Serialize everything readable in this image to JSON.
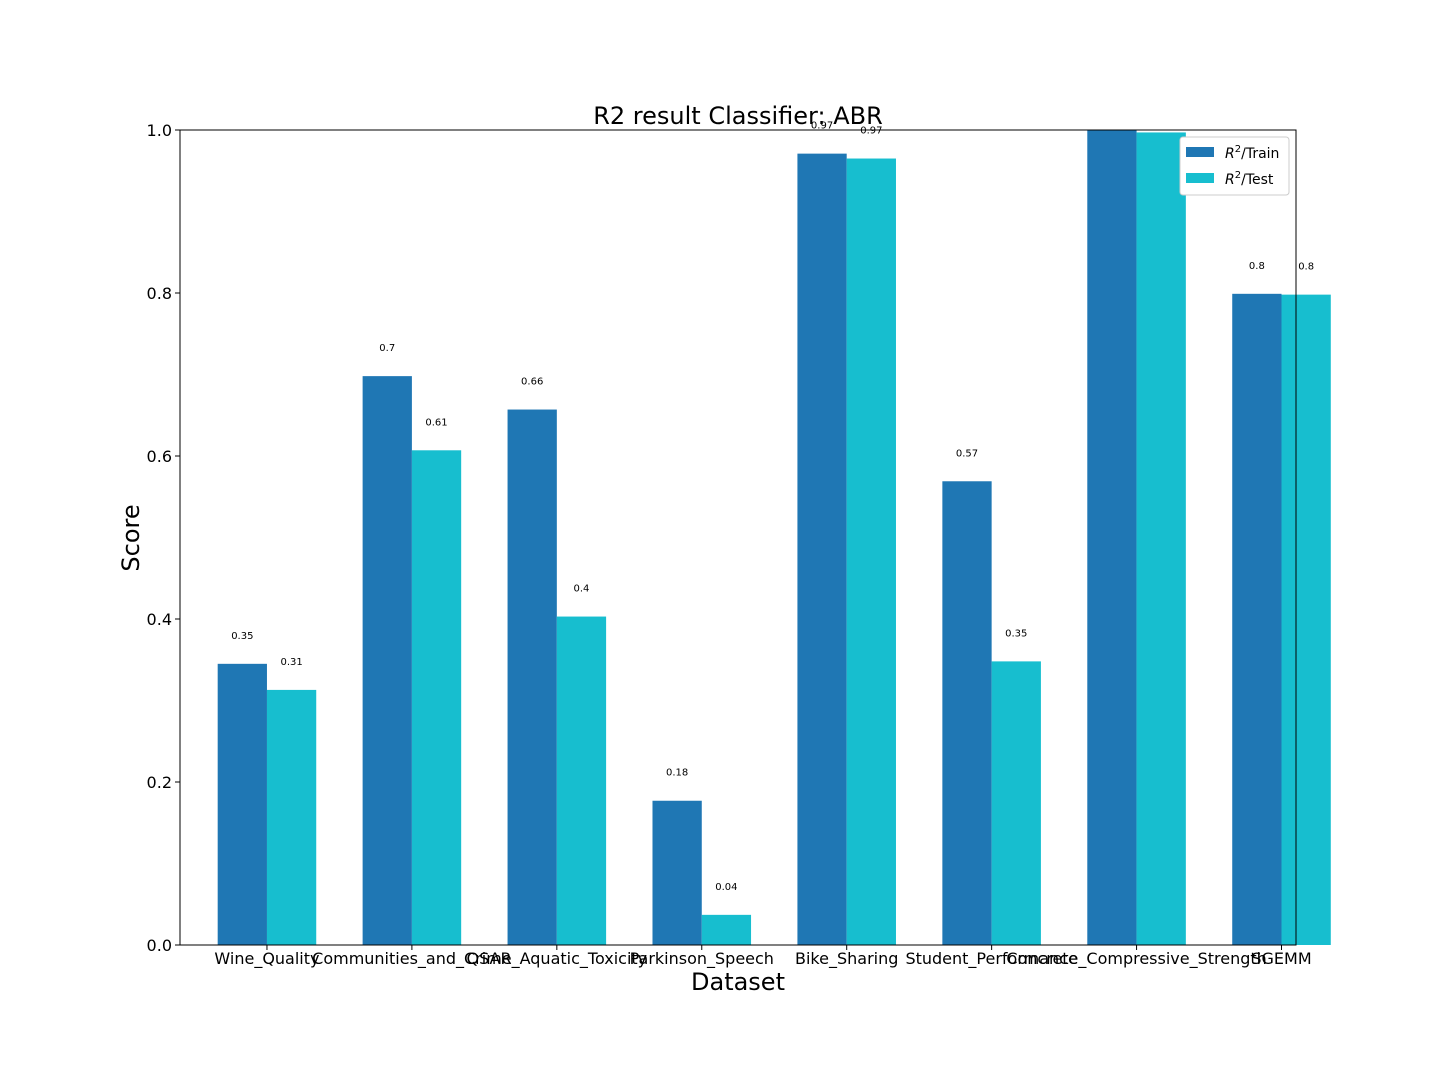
{
  "chart_data": {
    "type": "bar",
    "title": "R2 result Classifier: ABR",
    "xlabel": "Dataset",
    "ylabel": "Score",
    "ylim": [
      0,
      1.0
    ],
    "yticks": [
      "0.0",
      "0.2",
      "0.4",
      "0.6",
      "0.8",
      "1.0"
    ],
    "categories": [
      "Wine_Quality",
      "Communities_and_Crime",
      "QSAR_Aquatic_Toxicity",
      "Parkinson_Speech",
      "Bike_Sharing",
      "Student_Performance",
      "Concrete_Compressive_Strength",
      "SGEMM"
    ],
    "series": [
      {
        "name": "R²/Train",
        "legend_base": "R",
        "legend_sup": "2",
        "legend_suffix": "/Train",
        "color": "#1f77b4",
        "values": [
          0.345,
          0.698,
          0.657,
          0.177,
          0.971,
          0.569,
          1.0,
          0.799
        ],
        "labels": [
          "0.35",
          "0.7",
          "0.66",
          "0.18",
          "0.97",
          "0.57",
          "",
          "0.8"
        ]
      },
      {
        "name": "R²/Test",
        "legend_base": "R",
        "legend_sup": "2",
        "legend_suffix": "/Test",
        "color": "#17becf",
        "values": [
          0.313,
          0.607,
          0.403,
          0.037,
          0.965,
          0.348,
          0.997,
          0.798
        ],
        "labels": [
          "0.31",
          "0.61",
          "0.4",
          "0.04",
          "0.97",
          "0.35",
          "",
          "0.8"
        ]
      }
    ],
    "legend_position": "top-right",
    "grid": false
  }
}
